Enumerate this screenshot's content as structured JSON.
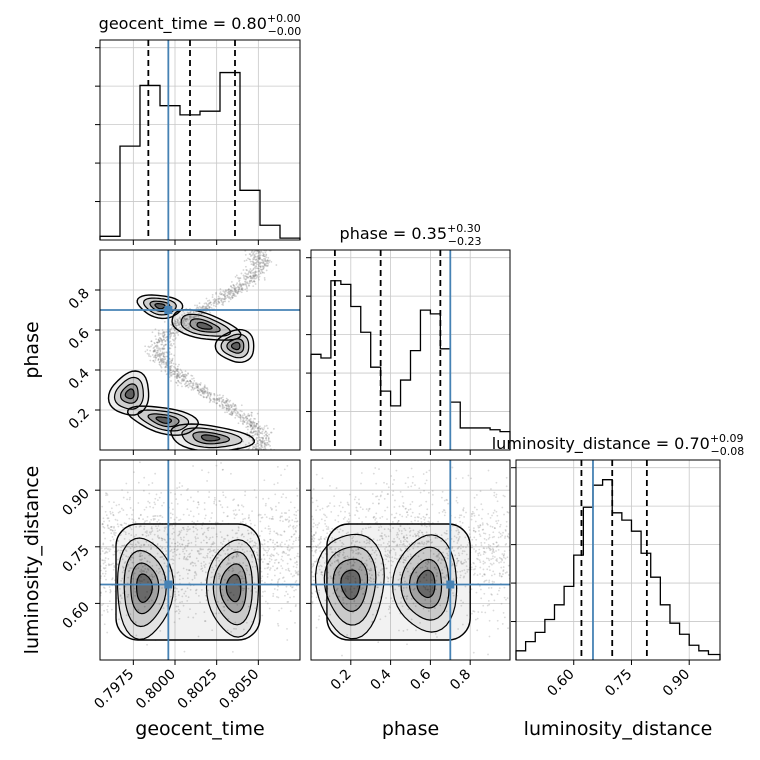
{
  "chart_data": {
    "type": "corner",
    "parameters": [
      "geocent_time",
      "phase",
      "luminosity_distance"
    ],
    "truths": {
      "geocent_time": 0.7996,
      "phase": 0.7,
      "luminosity_distance": 0.65
    },
    "panels": {
      "geocent_time": {
        "title": {
          "name": "geocent_time",
          "median": "0.80",
          "plus": "+0.00",
          "minus": "−0.00"
        },
        "xlim": [
          0.7955,
          0.8075
        ],
        "xlabel": "geocent_time",
        "ticks": [
          0.7975,
          0.8,
          0.8025,
          0.805
        ],
        "tick_labels": [
          "0.7975",
          "0.8000",
          "0.8025",
          "0.8050"
        ],
        "quantiles": [
          0.7984,
          0.8009,
          0.8036
        ],
        "hist_edges": [
          0.7955,
          0.7967,
          0.7979,
          0.7991,
          0.8003,
          0.8015,
          0.8027,
          0.8039,
          0.8051,
          0.8063,
          0.8075
        ],
        "hist_values": [
          0.02,
          0.51,
          0.84,
          0.73,
          0.68,
          0.7,
          0.91,
          0.27,
          0.08,
          0.01
        ]
      },
      "phase": {
        "title": {
          "name": "phase",
          "median": "0.35",
          "plus": "+0.30",
          "minus": "−0.23"
        },
        "xlim": [
          0.0,
          1.0
        ],
        "xlabel": "phase",
        "ylabel": "phase",
        "ticks": [
          0.2,
          0.4,
          0.6,
          0.8
        ],
        "tick_labels": [
          "0.2",
          "0.4",
          "0.6",
          "0.8"
        ],
        "quantiles": [
          0.12,
          0.35,
          0.65
        ],
        "hist_edges": [
          0.0,
          0.05,
          0.1,
          0.15,
          0.2,
          0.25,
          0.3,
          0.35,
          0.4,
          0.45,
          0.5,
          0.55,
          0.6,
          0.65,
          0.7,
          0.75,
          0.8,
          0.85,
          0.9,
          0.95,
          1.0
        ],
        "hist_values": [
          0.52,
          0.5,
          0.92,
          0.9,
          0.78,
          0.64,
          0.45,
          0.32,
          0.24,
          0.38,
          0.54,
          0.76,
          0.74,
          0.55,
          0.26,
          0.12,
          0.12,
          0.12,
          0.11,
          0.1
        ]
      },
      "luminosity_distance": {
        "title": {
          "name": "luminosity_distance",
          "median": "0.70",
          "plus": "+0.09",
          "minus": "−0.08"
        },
        "xlim": [
          0.45,
          0.98
        ],
        "xlabel": "luminosity_distance",
        "ylabel": "luminosity_distance",
        "ticks": [
          0.6,
          0.75,
          0.9
        ],
        "tick_labels": [
          "0.60",
          "0.75",
          "0.90"
        ],
        "quantiles": [
          0.62,
          0.7,
          0.79
        ],
        "hist_edges": [
          0.45,
          0.475,
          0.5,
          0.525,
          0.55,
          0.575,
          0.6,
          0.625,
          0.65,
          0.675,
          0.7,
          0.725,
          0.75,
          0.775,
          0.8,
          0.825,
          0.85,
          0.875,
          0.9,
          0.925,
          0.95,
          0.98
        ],
        "hist_values": [
          0.05,
          0.1,
          0.15,
          0.22,
          0.3,
          0.4,
          0.57,
          0.83,
          0.95,
          0.98,
          0.8,
          0.76,
          0.7,
          0.58,
          0.45,
          0.3,
          0.2,
          0.14,
          0.08,
          0.05,
          0.03
        ]
      }
    },
    "grid": true,
    "colors": {
      "truth": "#4682b4",
      "hist": "#000000",
      "quantile": "#000000",
      "grid": "#c8c8c8",
      "scatter": "#888888"
    }
  }
}
